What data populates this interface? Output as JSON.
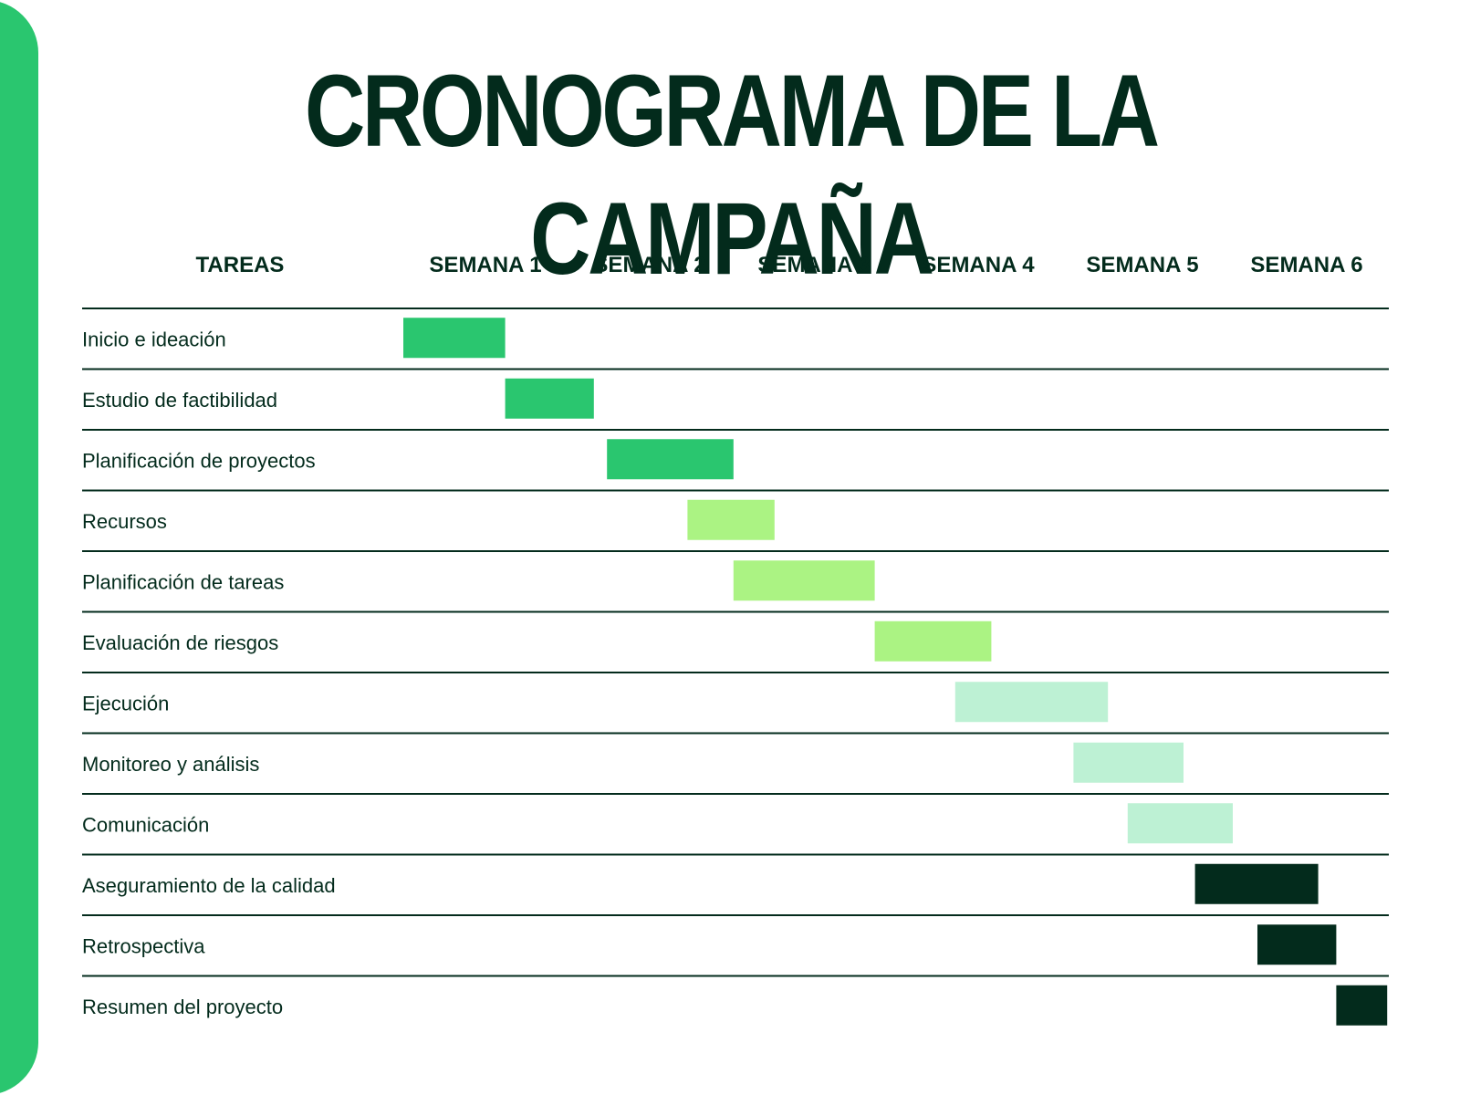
{
  "title": "CRONOGRAMA DE LA CAMPAÑA",
  "chart_data": {
    "type": "gantt",
    "title": "CRONOGRAMA DE LA CAMPAÑA",
    "task_header": "TAREAS",
    "categories": [
      "SEMANA 1",
      "SEMANA 2",
      "SEMANA 3",
      "SEMANA 4",
      "SEMANA 5",
      "SEMANA 6"
    ],
    "xlim": [
      0.5,
      6.5
    ],
    "colors": {
      "green": "#2ac66f",
      "lime": "#abf383",
      "mint": "#bdf1d4",
      "dark": "#032b1c",
      "rule": "#032b1c",
      "band": "#2ac66f"
    },
    "tasks": [
      {
        "label": "Inicio e ideación",
        "start": 0.5,
        "end": 1.12,
        "color": "green"
      },
      {
        "label": "Estudio de factibilidad",
        "start": 1.12,
        "end": 1.66,
        "color": "green"
      },
      {
        "label": "Planificación de proyectos",
        "start": 1.74,
        "end": 2.51,
        "color": "green"
      },
      {
        "label": "Recursos",
        "start": 2.23,
        "end": 2.76,
        "color": "lime"
      },
      {
        "label": "Planificación de tareas",
        "start": 2.51,
        "end": 3.37,
        "color": "lime"
      },
      {
        "label": "Evaluación de riesgos",
        "start": 3.37,
        "end": 4.08,
        "color": "lime"
      },
      {
        "label": "Ejecución",
        "start": 3.86,
        "end": 4.79,
        "color": "mint"
      },
      {
        "label": "Monitoreo y análisis",
        "start": 4.58,
        "end": 5.25,
        "color": "mint"
      },
      {
        "label": "Comunicación",
        "start": 4.91,
        "end": 5.55,
        "color": "mint"
      },
      {
        "label": "Aseguramiento de la calidad",
        "start": 5.32,
        "end": 6.07,
        "color": "dark"
      },
      {
        "label": "Retrospectiva",
        "start": 5.7,
        "end": 6.18,
        "color": "dark"
      },
      {
        "label": "Resumen del proyecto",
        "start": 6.18,
        "end": 6.49,
        "color": "dark"
      }
    ]
  }
}
